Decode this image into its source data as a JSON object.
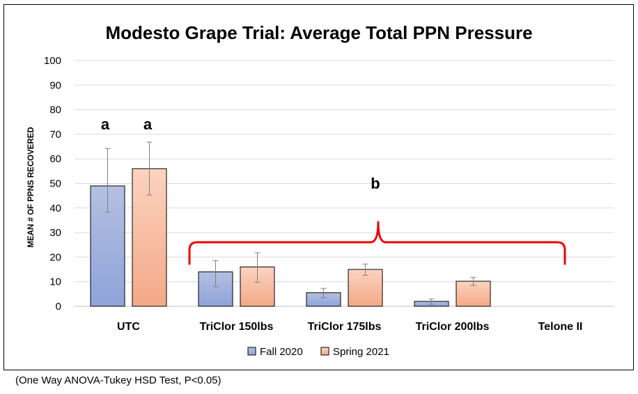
{
  "footnote": "(One Way ANOVA-Tukey HSD Test, P<0.05)",
  "chart_data": {
    "type": "bar",
    "title": "Modesto Grape Trial: Average Total PPN Pressure",
    "xlabel": "",
    "ylabel": "MEAN # OF PPNS RECOVERED",
    "ylim": [
      0,
      100
    ],
    "yticks": [
      0,
      10,
      20,
      30,
      40,
      50,
      60,
      70,
      80,
      90,
      100
    ],
    "grid": true,
    "legend_position": "bottom",
    "categories": [
      "UTC",
      "TriClor 150lbs",
      "TriClor 175lbs",
      "TriClor 200lbs",
      "Telone II"
    ],
    "series": [
      {
        "name": "Fall 2020",
        "color_top": "#b4c0e2",
        "color_bottom": "#8ea3d8",
        "values": [
          49,
          14,
          5.5,
          2,
          0
        ],
        "err_low": [
          38.3,
          8,
          3.5,
          0.8,
          null
        ],
        "err_high": [
          64.2,
          18.6,
          7.3,
          3,
          null
        ]
      },
      {
        "name": "Spring 2021",
        "color_top": "#fbd3c0",
        "color_bottom": "#f4a887",
        "values": [
          56,
          16,
          15,
          10.2,
          0
        ],
        "err_low": [
          45.3,
          9.8,
          12.6,
          8.5,
          null
        ],
        "err_high": [
          66.8,
          21.8,
          17.2,
          11.8,
          null
        ]
      }
    ],
    "annotations": {
      "a1": "a",
      "a2": "a",
      "b": "b"
    },
    "bracket_color": "#ee0000"
  }
}
